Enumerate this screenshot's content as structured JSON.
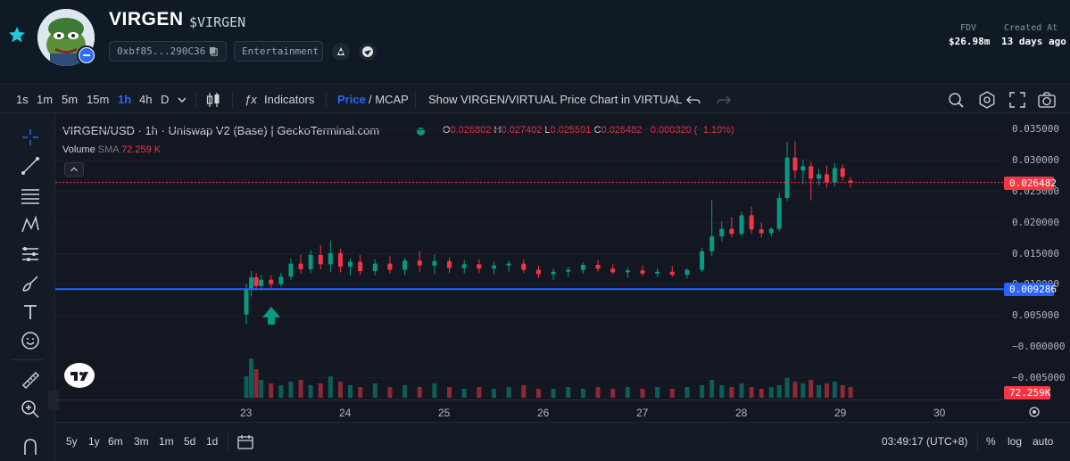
{
  "header": {
    "name": "VIRGEN",
    "symbol": "$VIRGEN",
    "address": "0xbf85...290C36",
    "category": "Entertainment",
    "fdv_label": "FDV",
    "fdv_value": "$26.98m",
    "created_label": "Created At",
    "created_value": "13 days ago",
    "icons": [
      "star-icon",
      "copy-icon",
      "dev-icon",
      "globe-icon"
    ]
  },
  "toolbar": {
    "intervals": [
      "1s",
      "1m",
      "5m",
      "15m",
      "1h",
      "4h",
      "D"
    ],
    "active_interval": "1h",
    "indicators_label": "Indicators",
    "price_label": "Price",
    "mcap_label": "/ MCAP",
    "virtual_label": "Show VIRGEN/VIRTUAL Price Chart in VIRTUAL"
  },
  "legend": {
    "pair": "VIRGEN/USD · 1h · Uniswap V2 (Base) | GeckoTerminal.com",
    "o_label": "O",
    "o": "0.026802",
    "h_label": "H",
    "h": "0.027402",
    "l_label": "L",
    "l": "0.025591",
    "c_label": "C",
    "c": "0.026482",
    "change": "−0.000320 (−1.19%)",
    "volume_label": "Volume",
    "sma_label": "SMA",
    "volume_value": "72.259 K"
  },
  "price_axis": {
    "ticks": [
      "0.035000",
      "0.030000",
      "0.025000",
      "0.020000",
      "0.015000",
      "0.010000",
      "0.005000",
      "−0.000000",
      "−0.005000"
    ],
    "last_price": "0.026482",
    "line_price": "0.009286",
    "volume_badge": "72.259K"
  },
  "time_axis": {
    "ticks": [
      "23",
      "24",
      "25",
      "26",
      "27",
      "28",
      "29",
      "30"
    ]
  },
  "bottom": {
    "ranges": [
      "5y",
      "1y",
      "6m",
      "3m",
      "1m",
      "5d",
      "1d"
    ],
    "clock": "03:49:17 (UTC+8)",
    "percent": "%",
    "log": "log",
    "auto": "auto"
  },
  "colors": {
    "up": "#089981",
    "down": "#f23645",
    "accent": "#2962ff",
    "horizontal_line": "#2962ff"
  },
  "chart_data": {
    "type": "candlestick",
    "title": "VIRGEN/USD · 1h · Uniswap V2 (Base) | GeckoTerminal.com",
    "ylim": [
      -0.0085,
      0.0375
    ],
    "horizontal_line": 0.009286,
    "last_price": 0.026482,
    "x_ticks": [
      "23",
      "24",
      "25",
      "26",
      "27",
      "28",
      "29",
      "30"
    ],
    "ohlc": [
      [
        0.0,
        0.0052,
        0.0102,
        0.0036,
        0.0094
      ],
      [
        0.05,
        0.0094,
        0.0122,
        0.0081,
        0.0112
      ],
      [
        0.1,
        0.0112,
        0.0119,
        0.0091,
        0.0098
      ],
      [
        0.15,
        0.0098,
        0.0116,
        0.0091,
        0.0108
      ],
      [
        0.25,
        0.0108,
        0.0115,
        0.0094,
        0.0101
      ],
      [
        0.35,
        0.0101,
        0.0119,
        0.0097,
        0.0113
      ],
      [
        0.45,
        0.0113,
        0.0142,
        0.0108,
        0.0134
      ],
      [
        0.55,
        0.0134,
        0.0148,
        0.0118,
        0.0125
      ],
      [
        0.65,
        0.0125,
        0.0156,
        0.0119,
        0.0148
      ],
      [
        0.75,
        0.0148,
        0.0164,
        0.0125,
        0.0133
      ],
      [
        0.85,
        0.0133,
        0.0171,
        0.012,
        0.0151
      ],
      [
        0.95,
        0.0151,
        0.0158,
        0.012,
        0.0129
      ],
      [
        1.05,
        0.0129,
        0.0143,
        0.0115,
        0.0137
      ],
      [
        1.15,
        0.0137,
        0.0148,
        0.0116,
        0.0122
      ],
      [
        1.3,
        0.0122,
        0.0141,
        0.0115,
        0.0134
      ],
      [
        1.45,
        0.0134,
        0.0146,
        0.0118,
        0.0124
      ],
      [
        1.6,
        0.0124,
        0.0143,
        0.0115,
        0.0139
      ],
      [
        1.75,
        0.0139,
        0.0154,
        0.0121,
        0.0131
      ],
      [
        1.9,
        0.0131,
        0.0148,
        0.0117,
        0.0138
      ],
      [
        2.05,
        0.0138,
        0.0144,
        0.0119,
        0.0127
      ],
      [
        2.2,
        0.0127,
        0.014,
        0.0118,
        0.0133
      ],
      [
        2.35,
        0.0133,
        0.0141,
        0.0119,
        0.0126
      ],
      [
        2.5,
        0.0126,
        0.0137,
        0.0117,
        0.0131
      ],
      [
        2.65,
        0.0131,
        0.0139,
        0.0121,
        0.0134
      ],
      [
        2.8,
        0.0134,
        0.0141,
        0.0119,
        0.0124
      ],
      [
        2.95,
        0.0124,
        0.0131,
        0.0111,
        0.0117
      ],
      [
        3.1,
        0.0117,
        0.0126,
        0.0108,
        0.0121
      ],
      [
        3.25,
        0.0121,
        0.0129,
        0.0112,
        0.0124
      ],
      [
        3.4,
        0.0124,
        0.0136,
        0.0118,
        0.0132
      ],
      [
        3.55,
        0.0132,
        0.014,
        0.0121,
        0.0126
      ],
      [
        3.7,
        0.0126,
        0.0133,
        0.0117,
        0.012
      ],
      [
        3.85,
        0.012,
        0.0128,
        0.0111,
        0.0123
      ],
      [
        4.0,
        0.0123,
        0.0131,
        0.0114,
        0.0118
      ],
      [
        4.15,
        0.0118,
        0.0127,
        0.0112,
        0.0121
      ],
      [
        4.3,
        0.0121,
        0.013,
        0.0113,
        0.0116
      ],
      [
        4.45,
        0.0116,
        0.0126,
        0.011,
        0.0124
      ],
      [
        4.6,
        0.0124,
        0.016,
        0.012,
        0.0154
      ],
      [
        4.7,
        0.0154,
        0.0236,
        0.0146,
        0.0178
      ],
      [
        4.8,
        0.0178,
        0.0202,
        0.017,
        0.019
      ],
      [
        4.9,
        0.019,
        0.0209,
        0.0176,
        0.0182
      ],
      [
        5.0,
        0.0182,
        0.0218,
        0.0178,
        0.0212
      ],
      [
        5.1,
        0.0212,
        0.0226,
        0.0182,
        0.0189
      ],
      [
        5.2,
        0.0189,
        0.02,
        0.0176,
        0.0183
      ],
      [
        5.3,
        0.0183,
        0.0193,
        0.0178,
        0.019
      ],
      [
        5.38,
        0.019,
        0.0248,
        0.0186,
        0.024
      ],
      [
        5.46,
        0.024,
        0.033,
        0.0235,
        0.0305
      ],
      [
        5.54,
        0.0305,
        0.0332,
        0.0271,
        0.0284
      ],
      [
        5.62,
        0.0284,
        0.0302,
        0.0262,
        0.0291
      ],
      [
        5.7,
        0.0291,
        0.0298,
        0.0236,
        0.0271
      ],
      [
        5.78,
        0.0271,
        0.0287,
        0.026,
        0.0278
      ],
      [
        5.86,
        0.0278,
        0.0292,
        0.0256,
        0.0265
      ],
      [
        5.94,
        0.0265,
        0.0296,
        0.0258,
        0.0288
      ],
      [
        6.02,
        0.0288,
        0.0294,
        0.0268,
        0.0274
      ],
      [
        6.1,
        0.0268,
        0.0274,
        0.0256,
        0.0265
      ]
    ],
    "volume": [
      12,
      22,
      16,
      10,
      8,
      7,
      9,
      10,
      7,
      8,
      12,
      9,
      7,
      6,
      8,
      6,
      7,
      6,
      8,
      6,
      5,
      6,
      5,
      6,
      7,
      5,
      5,
      6,
      5,
      6,
      5,
      6,
      5,
      6,
      5,
      6,
      7,
      10,
      7,
      6,
      8,
      6,
      5,
      6,
      7,
      11,
      9,
      8,
      10,
      7,
      8,
      9,
      7,
      6
    ]
  }
}
